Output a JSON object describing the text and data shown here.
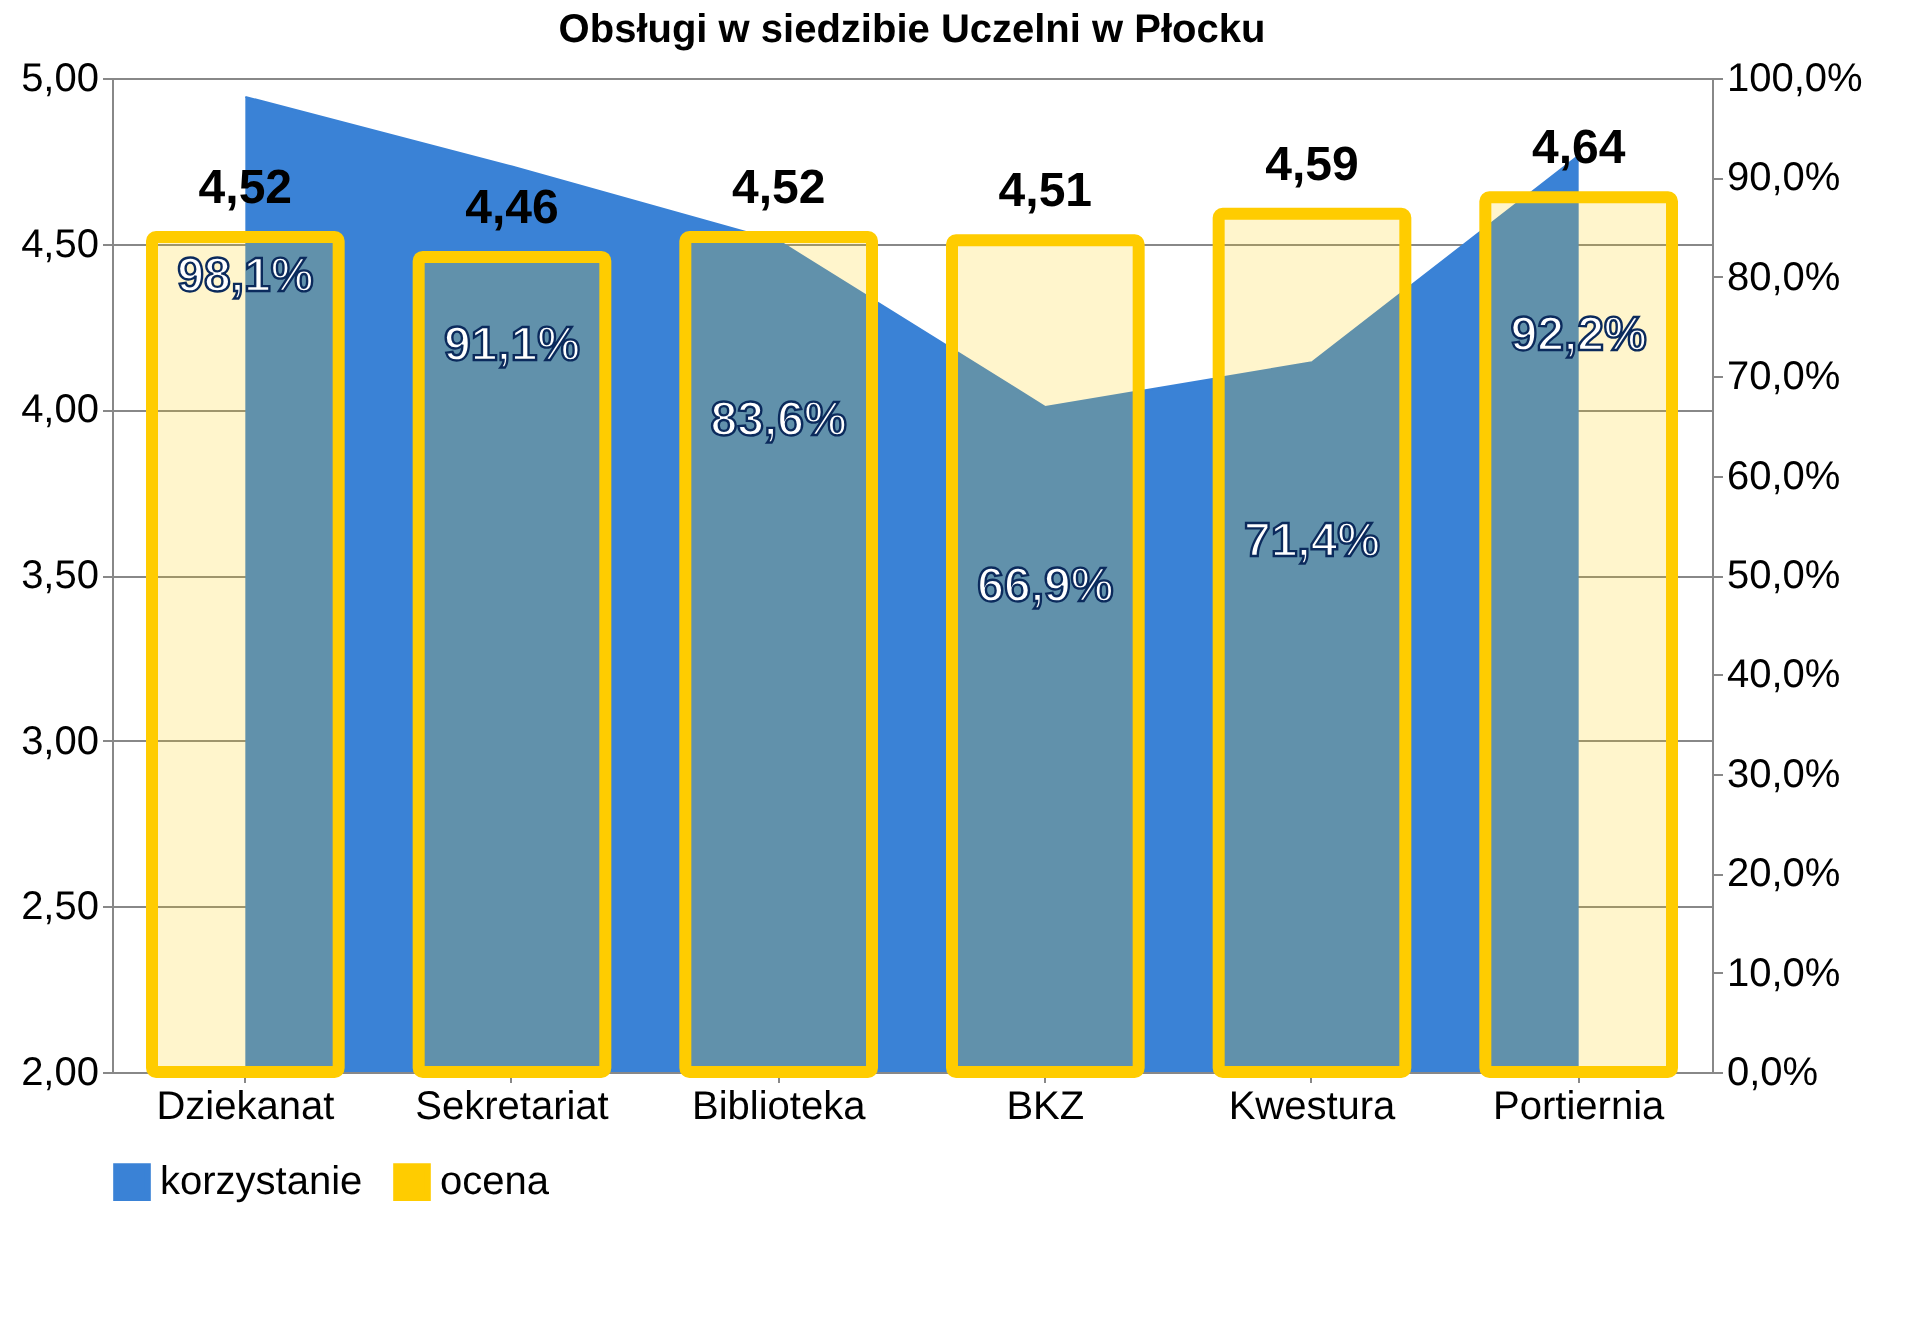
{
  "chart_data": {
    "type": "bar",
    "title": "Obsługi w siedzibie Uczelni w Płocku",
    "categories": [
      "Dziekanat",
      "Sekretariat",
      "Biblioteka",
      "BKZ",
      "Kwestura",
      "Portiernia"
    ],
    "series": [
      {
        "name": "korzystanie",
        "type": "area",
        "axis": "y2",
        "color": "#3a82d6",
        "values": [
          98.1,
          91.1,
          83.6,
          66.9,
          71.4,
          92.2
        ],
        "value_labels": [
          "98,1%",
          "91,1%",
          "83,6%",
          "66,9%",
          "71,4%",
          "92,2%"
        ]
      },
      {
        "name": "ocena",
        "color": "#ffcc00",
        "values": [
          4.52,
          4.46,
          4.52,
          4.51,
          4.59,
          4.64
        ],
        "value_labels": [
          "4,52",
          "4,46",
          "4,52",
          "4,51",
          "4,59",
          "4,64"
        ]
      }
    ],
    "ylim": [
      2,
      5
    ],
    "yticks": [
      {
        "value": 2,
        "label": "2,00"
      },
      {
        "value": 2.5,
        "label": "2,50"
      },
      {
        "value": 3,
        "label": "3,00"
      },
      {
        "value": 3.5,
        "label": "3,50"
      },
      {
        "value": 4,
        "label": "4,00"
      },
      {
        "value": 4.5,
        "label": "4,50"
      },
      {
        "value": 5,
        "label": "5,00"
      }
    ],
    "y2lim": [
      0,
      100
    ],
    "y2ticks": [
      {
        "value": 0,
        "label": "0,0%"
      },
      {
        "value": 10,
        "label": "10,0%"
      },
      {
        "value": 20,
        "label": "20,0%"
      },
      {
        "value": 30,
        "label": "30,0%"
      },
      {
        "value": 40,
        "label": "40,0%"
      },
      {
        "value": 50,
        "label": "50,0%"
      },
      {
        "value": 60,
        "label": "60,0%"
      },
      {
        "value": 70,
        "label": "70,0%"
      },
      {
        "value": 80,
        "label": "80,0%"
      },
      {
        "value": 90,
        "label": "90,0%"
      },
      {
        "value": 100,
        "label": "100,0%"
      }
    ],
    "grid": "y",
    "legend": "bottom"
  }
}
